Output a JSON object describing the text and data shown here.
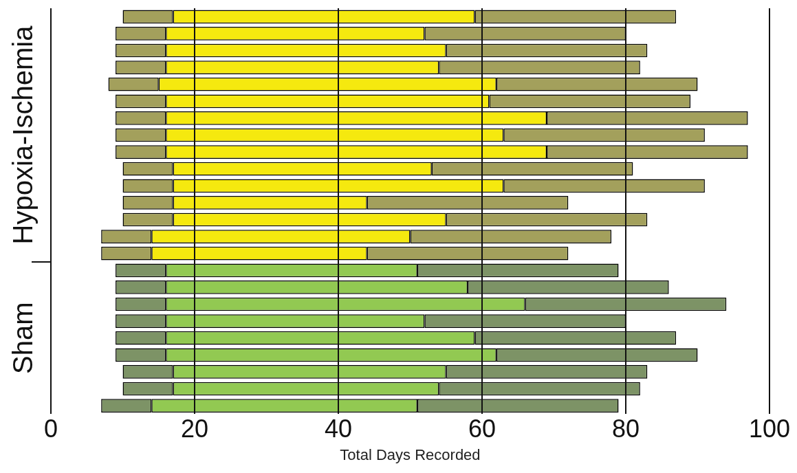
{
  "chart_data": {
    "type": "bar",
    "orientation": "horizontal",
    "xlabel": "Total Days Recorded",
    "categories": [
      null,
      null,
      null,
      null,
      null,
      null,
      null,
      null,
      null,
      null,
      null,
      null,
      null,
      null,
      null,
      null,
      null,
      null,
      null,
      null,
      null,
      null,
      null,
      null
    ],
    "series": [
      {
        "base": [
          10,
          9,
          9,
          9,
          8,
          9,
          9,
          9,
          9,
          10,
          10,
          10,
          10,
          7,
          7,
          9,
          9,
          9,
          9,
          9,
          9,
          10,
          10,
          7
        ],
        "colors": [
          "#a3a05c",
          "#a3a05c",
          "#a3a05c",
          "#a3a05c",
          "#a3a05c",
          "#a3a05c",
          "#a3a05c",
          "#a3a05c",
          "#a3a05c",
          "#a3a05c",
          "#a3a05c",
          "#a3a05c",
          "#a3a05c",
          "#a3a05c",
          "#a3a05c",
          "#7d9366",
          "#7d9366",
          "#7d9366",
          "#7d9366",
          "#7d9366",
          "#7d9366",
          "#7d9366",
          "#7d9366",
          "#7d9366"
        ],
        "values": [
          7,
          7,
          7,
          7,
          7,
          7,
          7,
          7,
          7,
          7,
          7,
          7,
          7,
          7,
          7,
          7,
          7,
          7,
          7,
          7,
          7,
          7,
          7,
          7
        ]
      },
      {
        "base": [
          17,
          16,
          16,
          16,
          15,
          16,
          16,
          16,
          16,
          17,
          17,
          17,
          17,
          14,
          14,
          16,
          16,
          16,
          16,
          16,
          16,
          17,
          17,
          14
        ],
        "colors": [
          "#f5e90f",
          "#f5e90f",
          "#f5e90f",
          "#f5e90f",
          "#f5e90f",
          "#f5e90f",
          "#f5e90f",
          "#f5e90f",
          "#f5e90f",
          "#f5e90f",
          "#f5e90f",
          "#f5e90f",
          "#f5e90f",
          "#f5e90f",
          "#f5e90f",
          "#92c952",
          "#92c952",
          "#92c952",
          "#92c952",
          "#92c952",
          "#92c952",
          "#92c952",
          "#92c952",
          "#92c952"
        ],
        "values": [
          42,
          36,
          39,
          38,
          47,
          45,
          53,
          47,
          53,
          36,
          46,
          27,
          38,
          36,
          30,
          35,
          42,
          50,
          36,
          43,
          46,
          38,
          37,
          37
        ]
      },
      {
        "base": [
          59,
          52,
          55,
          54,
          62,
          61,
          69,
          63,
          69,
          53,
          63,
          44,
          55,
          50,
          44,
          51,
          58,
          66,
          52,
          59,
          62,
          55,
          54,
          51
        ],
        "colors": [
          "#a3a05c",
          "#a3a05c",
          "#a3a05c",
          "#a3a05c",
          "#a3a05c",
          "#a3a05c",
          "#a3a05c",
          "#a3a05c",
          "#a3a05c",
          "#a3a05c",
          "#a3a05c",
          "#a3a05c",
          "#a3a05c",
          "#a3a05c",
          "#a3a05c",
          "#7d9366",
          "#7d9366",
          "#7d9366",
          "#7d9366",
          "#7d9366",
          "#7d9366",
          "#7d9366",
          "#7d9366",
          "#7d9366"
        ],
        "values": [
          28,
          28,
          28,
          28,
          28,
          28,
          28,
          28,
          28,
          28,
          28,
          28,
          28,
          28,
          28,
          28,
          28,
          28,
          28,
          28,
          28,
          28,
          28,
          28
        ]
      }
    ],
    "xlim": [
      0,
      100
    ],
    "xticks": [
      0,
      20,
      40,
      60,
      80,
      100
    ],
    "grid": "x",
    "tick_labels": "x",
    "legend": false,
    "annotations": [
      "Hypoxia-Ischemia",
      "Sham"
    ]
  }
}
